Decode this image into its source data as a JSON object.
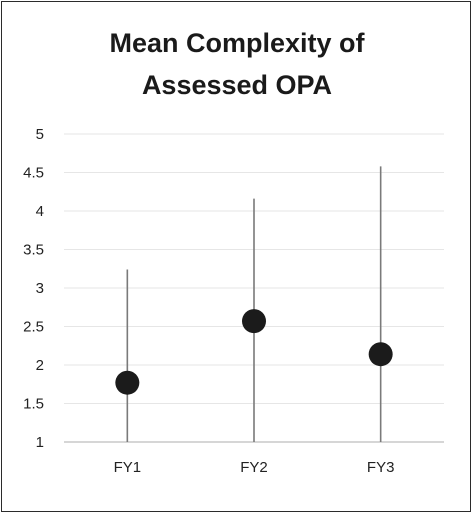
{
  "chart_data": {
    "type": "scatter",
    "title_lines": [
      "Mean Complexity of",
      "Assessed OPA"
    ],
    "xlabel": "",
    "ylabel": "",
    "categories": [
      "FY1",
      "FY2",
      "FY3"
    ],
    "series": [
      {
        "values": [
          1.77,
          2.57,
          2.14
        ],
        "low": [
          1.0,
          1.0,
          1.0
        ],
        "high": [
          3.24,
          4.16,
          4.58
        ]
      }
    ],
    "ylim": [
      1,
      5
    ],
    "yticks": [
      "1",
      "1.5",
      "2",
      "2.5",
      "3",
      "3.5",
      "4",
      "4.5",
      "5"
    ],
    "grid": true,
    "legend": "none",
    "colors": {
      "marker": "#1b1b1b",
      "range_line": "#7a7a7a",
      "grid": "#e6e6e6",
      "axis": "#bdbdbd"
    }
  }
}
